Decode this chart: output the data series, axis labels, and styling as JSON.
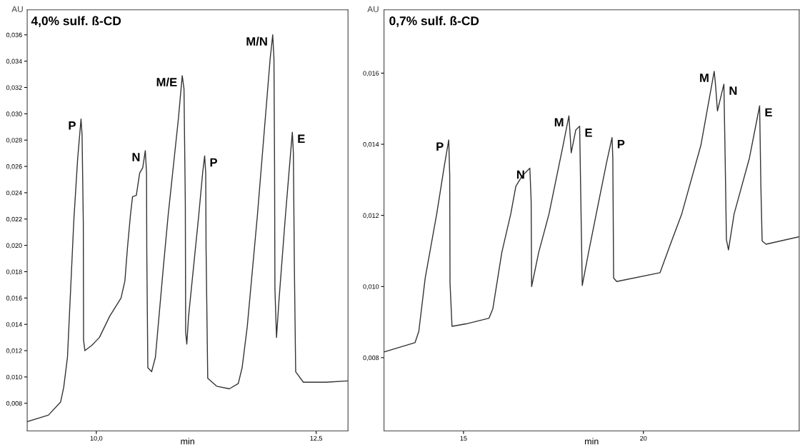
{
  "chart_data": [
    {
      "type": "line",
      "title": "4,0% sulf. ß-CD",
      "xlabel": "min",
      "ylabel": "AU",
      "grid": false,
      "legend": false,
      "xlim": [
        9.214,
        12.862
      ],
      "ylim": [
        0.0059,
        0.0379
      ],
      "xticks": [
        {
          "value": 10,
          "label": "10,0"
        },
        {
          "value": 12.5,
          "label": "12,5"
        }
      ],
      "yticks": [
        {
          "value": 0.008,
          "label": "0,008"
        },
        {
          "value": 0.01,
          "label": "0,010"
        },
        {
          "value": 0.012,
          "label": "0,012"
        },
        {
          "value": 0.014,
          "label": "0,014"
        },
        {
          "value": 0.016,
          "label": "0,016"
        },
        {
          "value": 0.018,
          "label": "0,018"
        },
        {
          "value": 0.02,
          "label": "0,020"
        },
        {
          "value": 0.022,
          "label": "0,022"
        },
        {
          "value": 0.024,
          "label": "0,024"
        },
        {
          "value": 0.026,
          "label": "0,026"
        },
        {
          "value": 0.028,
          "label": "0,028"
        },
        {
          "value": 0.03,
          "label": "0,030"
        },
        {
          "value": 0.032,
          "label": "0,032"
        },
        {
          "value": 0.034,
          "label": "0,034"
        },
        {
          "value": 0.036,
          "label": "0,036"
        }
      ],
      "series": [
        {
          "color": "#333333",
          "x": [
            9.214,
            9.455,
            9.594,
            9.629,
            9.672,
            9.745,
            9.788,
            9.826,
            9.838,
            9.852,
            9.855,
            9.87,
            9.948,
            10.035,
            10.151,
            10.281,
            10.325,
            10.354,
            10.388,
            10.412,
            10.455,
            10.493,
            10.528,
            10.557,
            10.571,
            10.574,
            10.586,
            10.629,
            10.672,
            10.759,
            10.817,
            10.933,
            10.977,
            10.997,
            11.012,
            11.016,
            11.029,
            11.049,
            11.165,
            11.209,
            11.232,
            11.244,
            11.248,
            11.267,
            11.368,
            11.513,
            11.614,
            11.658,
            11.716,
            11.832,
            11.977,
            12.006,
            12.02,
            12.027,
            12.031,
            12.049,
            12.078,
            12.151,
            12.209,
            12.229,
            12.241,
            12.252,
            12.267,
            12.354,
            12.614,
            12.861
          ],
          "values": [
            0.0066,
            0.0071,
            0.0081,
            0.0092,
            0.0115,
            0.022,
            0.0266,
            0.0296,
            0.0284,
            0.0217,
            0.0128,
            0.012,
            0.0124,
            0.013,
            0.0146,
            0.016,
            0.0173,
            0.0198,
            0.0223,
            0.0237,
            0.0238,
            0.0255,
            0.0259,
            0.0272,
            0.0255,
            0.0194,
            0.0107,
            0.0104,
            0.0115,
            0.0181,
            0.0223,
            0.0296,
            0.0329,
            0.0319,
            0.0232,
            0.0134,
            0.0125,
            0.0146,
            0.0223,
            0.0255,
            0.0268,
            0.0255,
            0.0198,
            0.0099,
            0.0093,
            0.0091,
            0.0095,
            0.0107,
            0.0138,
            0.0223,
            0.0342,
            0.036,
            0.0342,
            0.0261,
            0.0167,
            0.013,
            0.0159,
            0.0223,
            0.027,
            0.0286,
            0.027,
            0.0185,
            0.0104,
            0.0096,
            0.0096,
            0.0097
          ]
        }
      ],
      "annotations": [
        {
          "text": "P",
          "x": 9.826,
          "y": 0.0296
        },
        {
          "text": "N",
          "x": 10.557,
          "y": 0.0272
        },
        {
          "text": "M/E",
          "x": 10.977,
          "y": 0.0329
        },
        {
          "text": "P",
          "x": 11.232,
          "y": 0.0268
        },
        {
          "text": "M/N",
          "x": 12.006,
          "y": 0.036
        },
        {
          "text": "E",
          "x": 12.229,
          "y": 0.0286
        }
      ]
    },
    {
      "type": "line",
      "title": "0,7% sulf. ß-CD",
      "xlabel": "min",
      "ylabel": "AU",
      "grid": false,
      "legend": false,
      "xlim": [
        12.79,
        24.33
      ],
      "ylim": [
        0.00594,
        0.01778
      ],
      "xticks": [
        15,
        20
      ],
      "yticks": [
        {
          "value": 0.008,
          "label": "0,008"
        },
        {
          "value": 0.01,
          "label": "0,010"
        },
        {
          "value": 0.012,
          "label": "0,012"
        },
        {
          "value": 0.014,
          "label": "0,014"
        },
        {
          "value": 0.016,
          "label": "0,016"
        }
      ],
      "series": [
        {
          "color": "#333333",
          "x": [
            12.79,
            13.651,
            13.758,
            13.935,
            14.255,
            14.468,
            14.589,
            14.617,
            14.625,
            14.68,
            15.07,
            15.71,
            15.816,
            16.065,
            16.313,
            16.454,
            16.631,
            16.844,
            16.88,
            16.893,
            17.09,
            17.376,
            17.767,
            17.93,
            17.994,
            18.12,
            18.228,
            18.26,
            18.3,
            18.476,
            18.689,
            18.973,
            19.128,
            19.15,
            19.172,
            19.257,
            20.463,
            20.747,
            21.065,
            21.597,
            21.967,
            22.003,
            22.058,
            22.237,
            22.272,
            22.307,
            22.364,
            22.521,
            22.946,
            23.23,
            23.265,
            23.3,
            23.41,
            24.33
          ],
          "values": [
            0.00816,
            0.00842,
            0.00874,
            0.01024,
            0.01204,
            0.0134,
            0.01412,
            0.01311,
            0.0101,
            0.00888,
            0.00895,
            0.00911,
            0.00938,
            0.01096,
            0.01204,
            0.01282,
            0.01311,
            0.01333,
            0.0124,
            0.01,
            0.01096,
            0.01204,
            0.01397,
            0.0148,
            0.01376,
            0.0144,
            0.01451,
            0.01247,
            0.01003,
            0.01096,
            0.01204,
            0.01347,
            0.01419,
            0.01361,
            0.01024,
            0.01014,
            0.01039,
            0.01118,
            0.01204,
            0.01397,
            0.01605,
            0.01569,
            0.01494,
            0.01569,
            0.01361,
            0.01132,
            0.01103,
            0.01204,
            0.01361,
            0.01508,
            0.01282,
            0.01128,
            0.01119,
            0.0114
          ]
        }
      ],
      "annotations": [
        {
          "text": "P",
          "x": 14.589,
          "y": 0.01412
        },
        {
          "text": "N",
          "x": 16.844,
          "y": 0.01333
        },
        {
          "text": "M",
          "x": 17.93,
          "y": 0.0148
        },
        {
          "text": "E",
          "x": 18.228,
          "y": 0.01451
        },
        {
          "text": "P",
          "x": 19.128,
          "y": 0.01419
        },
        {
          "text": "M",
          "x": 21.967,
          "y": 0.01605
        },
        {
          "text": "N",
          "x": 22.237,
          "y": 0.01569
        },
        {
          "text": "E",
          "x": 23.23,
          "y": 0.01508
        }
      ]
    }
  ]
}
